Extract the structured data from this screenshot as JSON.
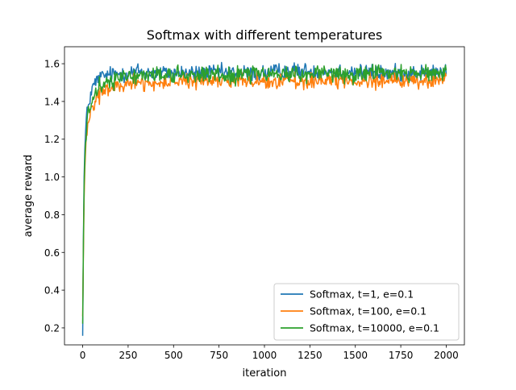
{
  "chart_data": {
    "type": "line",
    "title": "Softmax with different temperatures",
    "xlabel": "iteration",
    "ylabel": "average reward",
    "xlim": [
      -100,
      2100
    ],
    "ylim": [
      0.11,
      1.69
    ],
    "xticks": [
      0,
      250,
      500,
      750,
      1000,
      1250,
      1500,
      1750,
      2000
    ],
    "yticks": [
      0.2,
      0.4,
      0.6,
      0.8,
      1.0,
      1.2,
      1.4,
      1.6
    ],
    "xtick_labels": [
      "0",
      "250",
      "500",
      "750",
      "1000",
      "1250",
      "1500",
      "1750",
      "2000"
    ],
    "ytick_labels": [
      "0.2",
      "0.4",
      "0.6",
      "0.8",
      "1.0",
      "1.2",
      "1.4",
      "1.6"
    ],
    "grid": false,
    "legend_position": "lower right",
    "series": [
      {
        "name": "Softmax, t=1, e=0.1",
        "color": "#1f77b4",
        "x": [
          0,
          3,
          6,
          10,
          15,
          20,
          30,
          40,
          50,
          70,
          100,
          150,
          200,
          250,
          300,
          400,
          500,
          600,
          700,
          800,
          900,
          1000,
          1100,
          1200,
          1300,
          1400,
          1500,
          1600,
          1700,
          1800,
          1900,
          2000
        ],
        "y": [
          0.17,
          0.55,
          0.9,
          1.1,
          1.22,
          1.3,
          1.38,
          1.42,
          1.46,
          1.5,
          1.53,
          1.54,
          1.55,
          1.55,
          1.56,
          1.55,
          1.55,
          1.55,
          1.55,
          1.55,
          1.55,
          1.55,
          1.56,
          1.56,
          1.56,
          1.56,
          1.56,
          1.55,
          1.55,
          1.55,
          1.55,
          1.55
        ],
        "noise": 0.022
      },
      {
        "name": "Softmax, t=100, e=0.1",
        "color": "#ff7f0e",
        "x": [
          0,
          3,
          6,
          10,
          15,
          20,
          30,
          40,
          50,
          70,
          100,
          150,
          200,
          250,
          300,
          400,
          500,
          600,
          700,
          800,
          900,
          1000,
          1100,
          1200,
          1300,
          1400,
          1500,
          1600,
          1700,
          1800,
          1900,
          2000
        ],
        "y": [
          0.26,
          0.5,
          0.8,
          1.0,
          1.12,
          1.2,
          1.28,
          1.33,
          1.37,
          1.41,
          1.44,
          1.47,
          1.48,
          1.49,
          1.5,
          1.5,
          1.5,
          1.51,
          1.51,
          1.51,
          1.51,
          1.51,
          1.51,
          1.51,
          1.51,
          1.51,
          1.51,
          1.51,
          1.51,
          1.51,
          1.51,
          1.51
        ],
        "noise": 0.02
      },
      {
        "name": "Softmax, t=10000, e=0.1",
        "color": "#2ca02c",
        "x": [
          0,
          3,
          6,
          10,
          15,
          20,
          30,
          40,
          50,
          70,
          100,
          150,
          200,
          250,
          300,
          400,
          500,
          600,
          700,
          800,
          900,
          1000,
          1100,
          1200,
          1300,
          1400,
          1500,
          1600,
          1700,
          1800,
          1900,
          2000
        ],
        "y": [
          0.22,
          0.52,
          0.85,
          1.05,
          1.17,
          1.24,
          1.32,
          1.36,
          1.4,
          1.44,
          1.48,
          1.51,
          1.52,
          1.53,
          1.53,
          1.54,
          1.54,
          1.54,
          1.54,
          1.54,
          1.55,
          1.55,
          1.55,
          1.55,
          1.55,
          1.55,
          1.55,
          1.55,
          1.55,
          1.55,
          1.55,
          1.55
        ],
        "noise": 0.022
      }
    ]
  }
}
